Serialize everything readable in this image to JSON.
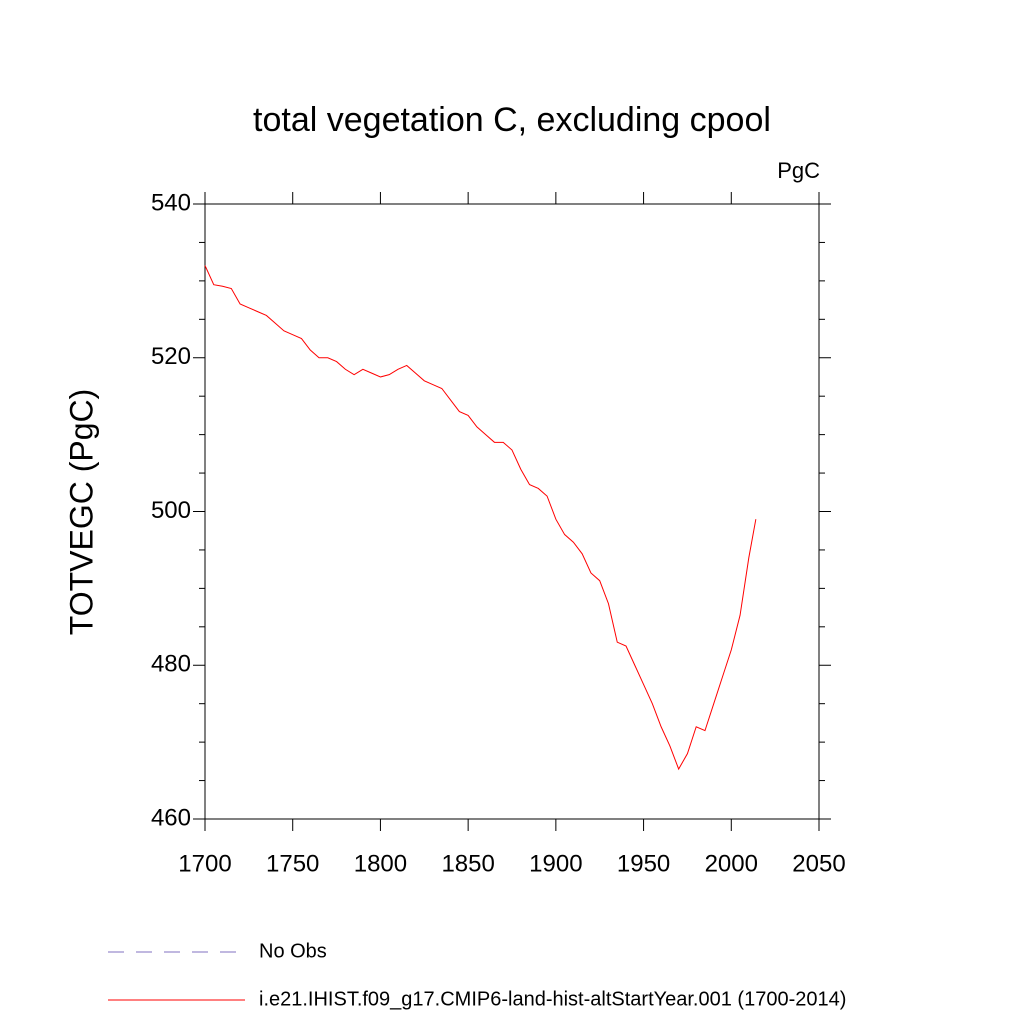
{
  "chart_data": {
    "type": "line",
    "title": "total vegetation C, excluding cpool",
    "units": "PgC",
    "y_label": "TOTVEGC  (PgC)",
    "x": [
      1700,
      1705,
      1710,
      1715,
      1720,
      1725,
      1730,
      1735,
      1740,
      1745,
      1750,
      1755,
      1760,
      1765,
      1770,
      1775,
      1780,
      1785,
      1790,
      1795,
      1800,
      1805,
      1810,
      1815,
      1820,
      1825,
      1830,
      1835,
      1840,
      1845,
      1850,
      1855,
      1860,
      1865,
      1870,
      1875,
      1880,
      1885,
      1890,
      1895,
      1900,
      1905,
      1910,
      1915,
      1920,
      1925,
      1930,
      1935,
      1940,
      1945,
      1950,
      1955,
      1960,
      1965,
      1970,
      1975,
      1980,
      1985,
      1990,
      1995,
      2000,
      2005,
      2010,
      2014
    ],
    "series": [
      {
        "name": "No Obs",
        "color": "#8070c0",
        "dash": "dashed",
        "values": [
          null,
          null,
          null,
          null,
          null,
          null,
          null,
          null,
          null,
          null,
          null,
          null,
          null,
          null,
          null,
          null,
          null,
          null,
          null,
          null,
          null,
          null,
          null,
          null,
          null,
          null,
          null,
          null,
          null,
          null,
          null,
          null,
          null,
          null,
          null,
          null,
          null,
          null,
          null,
          null,
          null,
          null,
          null,
          null,
          null,
          null,
          null,
          null,
          null,
          null,
          null,
          null,
          null,
          null,
          null,
          null,
          null,
          null,
          null,
          null,
          null,
          null,
          null,
          null
        ]
      },
      {
        "name": "i.e21.IHIST.f09_g17.CMIP6-land-hist-altStartYear.001 (1700-2014)",
        "color": "#ff0000",
        "dash": "solid",
        "values": [
          532,
          529.5,
          529.3,
          529,
          527,
          526.5,
          526,
          525.5,
          524.5,
          523.5,
          523,
          522.5,
          521,
          520,
          520,
          519.5,
          518.5,
          517.8,
          518.5,
          518,
          517.5,
          517.8,
          518.5,
          519,
          518,
          517,
          516.5,
          516,
          514.5,
          513,
          512.5,
          511,
          510,
          509,
          509,
          508,
          505.5,
          503.5,
          503,
          502,
          499,
          497,
          496,
          494.5,
          492,
          491,
          488,
          483,
          482.5,
          480,
          477.5,
          475,
          472,
          469.5,
          466.5,
          468.5,
          472,
          471.5,
          475,
          478.5,
          482,
          486.5,
          494,
          499
        ]
      }
    ],
    "xlim": [
      1700,
      2050
    ],
    "xticks": [
      1700,
      1750,
      1800,
      1850,
      1900,
      1950,
      2000,
      2050
    ],
    "ylim": [
      460,
      540
    ],
    "yticks": [
      460,
      480,
      500,
      520,
      540
    ]
  }
}
